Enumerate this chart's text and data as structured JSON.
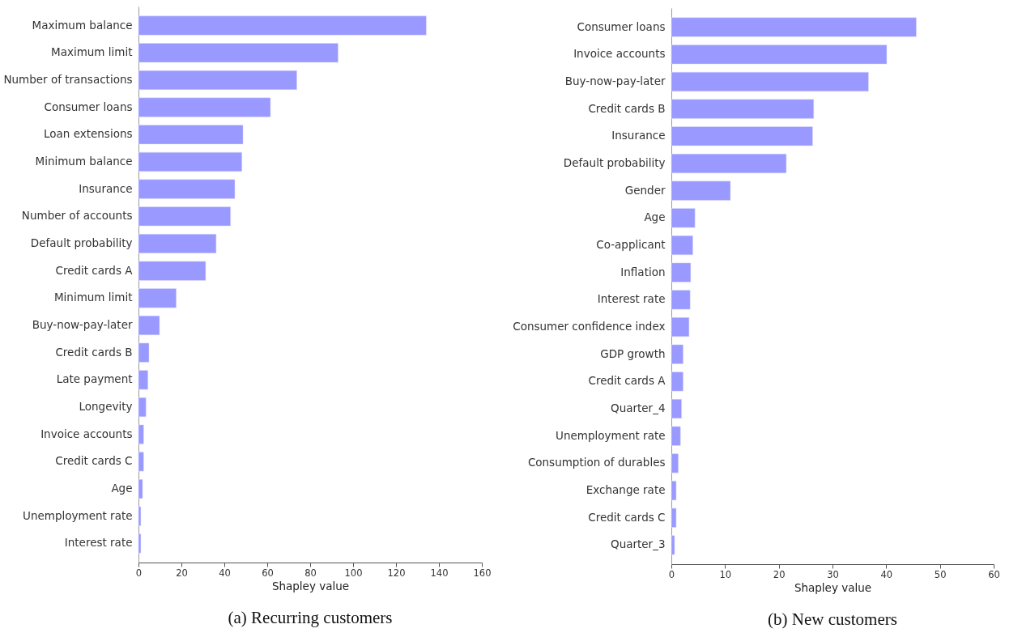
{
  "chart_data": [
    {
      "type": "bar",
      "orientation": "horizontal",
      "title": "(a) Recurring customers",
      "xlabel": "Shapley value",
      "color": "#9999ff",
      "categories": [
        "Maximum balance",
        "Maximum limit",
        "Number of transactions",
        "Consumer loans",
        "Loan extensions",
        "Minimum balance",
        "Insurance",
        "Number of accounts",
        "Default probability",
        "Credit cards A",
        "Minimum limit",
        "Buy-now-pay-later",
        "Credit cards B",
        "Late payment",
        "Longevity",
        "Invoice accounts",
        "Credit cards C",
        "Age",
        "Unemployment rate",
        "Interest rate"
      ],
      "values": [
        134.1,
        93.0,
        73.8,
        61.5,
        48.7,
        48.2,
        44.9,
        42.9,
        36.2,
        31.3,
        17.6,
        9.8,
        4.9,
        4.4,
        3.5,
        2.4,
        2.4,
        1.9,
        1.1,
        1.1
      ],
      "xlim": [
        0,
        160
      ],
      "xticks": [
        0,
        20,
        40,
        60,
        80,
        100,
        120,
        140,
        160
      ]
    },
    {
      "type": "bar",
      "orientation": "horizontal",
      "title": "(b) New customers",
      "xlabel": "Shapley value",
      "color": "#9999ff",
      "categories": [
        "Consumer loans",
        "Invoice accounts",
        "Buy-now-pay-later",
        "Credit cards B",
        "Insurance",
        "Default probability",
        "Gender",
        "Age",
        "Co-applicant",
        "Inflation",
        "Interest rate",
        "Consumer confidence index",
        "GDP growth",
        "Credit cards A",
        "Quarter_4",
        "Unemployment rate",
        "Consumption of durables",
        "Exchange rate",
        "Credit cards C",
        "Quarter_3"
      ],
      "values": [
        45.6,
        40.1,
        36.7,
        26.5,
        26.3,
        21.4,
        11.0,
        4.4,
        4.0,
        3.6,
        3.5,
        3.3,
        2.2,
        2.2,
        1.9,
        1.7,
        1.3,
        0.9,
        0.9,
        0.6
      ],
      "xlim": [
        0,
        60
      ],
      "xticks": [
        0,
        10,
        20,
        30,
        40,
        50,
        60
      ]
    }
  ]
}
